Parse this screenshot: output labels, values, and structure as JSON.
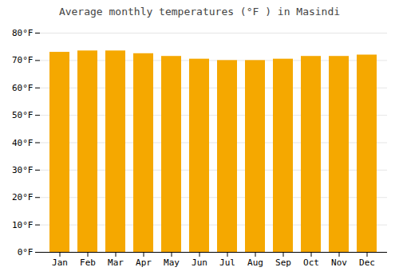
{
  "chart_data": {
    "type": "bar",
    "title": "Average monthly temperatures (°F ) in Masindi",
    "categories": [
      "Jan",
      "Feb",
      "Mar",
      "Apr",
      "May",
      "Jun",
      "Jul",
      "Aug",
      "Sep",
      "Oct",
      "Nov",
      "Dec"
    ],
    "values": [
      73,
      73.5,
      73.5,
      72.5,
      71.5,
      70.5,
      70,
      70,
      70.5,
      71.5,
      71.5,
      72
    ],
    "color": "#F5A800",
    "ylim": [
      0,
      80
    ],
    "yticks": [
      {
        "value": 0,
        "label": "0°F"
      },
      {
        "value": 10,
        "label": "10°F"
      },
      {
        "value": 20,
        "label": "20°F"
      },
      {
        "value": 30,
        "label": "30°F"
      },
      {
        "value": 40,
        "label": "40°F"
      },
      {
        "value": 50,
        "label": "50°F"
      },
      {
        "value": 60,
        "label": "60°F"
      },
      {
        "value": 70,
        "label": "70°F"
      },
      {
        "value": 80,
        "label": "80°F"
      }
    ],
    "grid": true
  }
}
